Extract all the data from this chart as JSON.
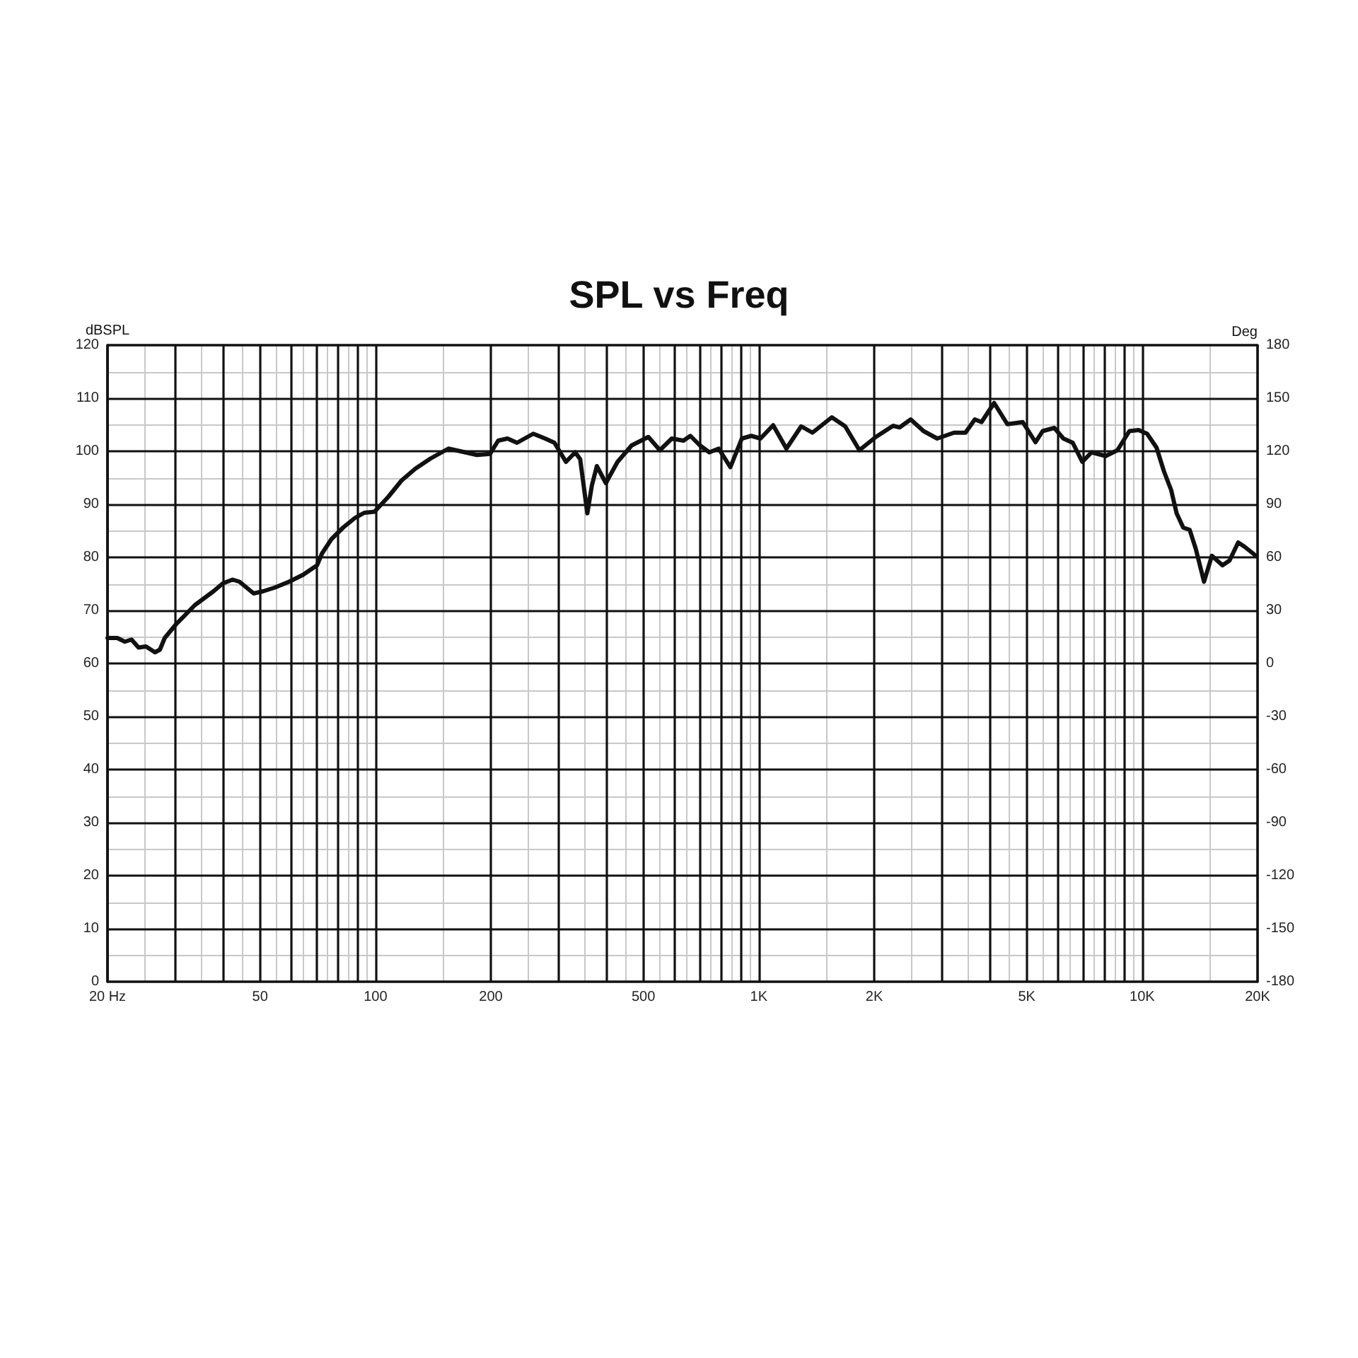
{
  "chart_data": {
    "type": "line",
    "title": "SPL vs Freq",
    "ylabel": "dBSPL",
    "y2label": "Deg",
    "x": [
      20,
      21.2,
      22.2,
      23.1,
      24.1,
      25.2,
      26.6,
      27.4,
      28.2,
      30.2,
      33.8,
      37.8,
      40,
      42.4,
      44.2,
      48.1,
      50.9,
      54.6,
      59.5,
      64.7,
      70.4,
      72.5,
      76.7,
      82.3,
      88.3,
      93.5,
      99.4,
      108,
      117,
      127,
      139,
      155,
      169,
      184,
      199,
      209,
      221,
      234,
      258,
      277,
      293,
      314,
      332,
      342,
      357,
      367,
      378,
      399,
      428,
      466,
      515,
      552,
      593,
      636,
      663,
      702,
      743,
      786,
      843,
      903,
      956,
      1010,
      1090,
      1180,
      1290,
      1380,
      1550,
      1680,
      1830,
      2020,
      2240,
      2330,
      2490,
      2690,
      2920,
      3230,
      3460,
      3660,
      3810,
      4110,
      4450,
      4880,
      5270,
      5500,
      5900,
      6230,
      6590,
      6980,
      7380,
      8030,
      8620,
      9260,
      9790,
      10300,
      10900,
      11400,
      11900,
      12300,
      12800,
      13300,
      13800,
      14500,
      15200,
      16200,
      16900,
      17800,
      18500,
      19800
    ],
    "values": [
      64.8,
      64.8,
      64.1,
      64.5,
      63,
      63.2,
      62.1,
      62.6,
      64.8,
      67.4,
      71,
      73.6,
      75.1,
      75.8,
      75.4,
      73.2,
      73.6,
      74.3,
      75.4,
      76.7,
      78.5,
      80.7,
      83.4,
      85.6,
      87.4,
      88.4,
      88.6,
      91.4,
      94.5,
      96.7,
      98.6,
      100.5,
      99.9,
      99.3,
      99.5,
      102,
      102.4,
      101.6,
      103.3,
      102.4,
      101.6,
      98,
      99.8,
      98.5,
      88.3,
      93.6,
      97.2,
      94,
      98,
      101.1,
      102.7,
      100.2,
      102.4,
      102,
      102.9,
      101.1,
      99.8,
      100.5,
      97,
      102.4,
      102.9,
      102.4,
      104.9,
      100.5,
      104.7,
      103.5,
      106.4,
      104.7,
      100.2,
      102.7,
      104.8,
      104.5,
      106,
      103.8,
      102.4,
      103.5,
      103.5,
      106,
      105.5,
      109.1,
      105.1,
      105.5,
      101.7,
      103.8,
      104.4,
      102.4,
      101.6,
      98,
      99.8,
      99.1,
      100.2,
      103.8,
      104,
      103.3,
      100.7,
      96.2,
      92.7,
      88.3,
      85.6,
      85.2,
      81.6,
      75.4,
      80.3,
      78.5,
      79.4,
      82.8,
      82,
      80.3
    ],
    "color": "#111111",
    "marker": "none",
    "log": "x",
    "grid": true,
    "xlim": [
      20,
      20000
    ],
    "xticks": [
      {
        "value": 20,
        "label": "20 Hz"
      },
      {
        "value": 30,
        "label": null
      },
      {
        "value": 40,
        "label": null
      },
      50,
      {
        "value": 60,
        "label": null
      },
      {
        "value": 70,
        "label": null
      },
      {
        "value": 80,
        "label": null
      },
      {
        "value": 90,
        "label": null
      },
      100,
      200,
      {
        "value": 300,
        "label": null
      },
      {
        "value": 400,
        "label": null
      },
      500,
      {
        "value": 600,
        "label": null
      },
      {
        "value": 700,
        "label": null
      },
      {
        "value": 800,
        "label": null
      },
      {
        "value": 900,
        "label": null
      },
      {
        "value": 1000,
        "label": "1K"
      },
      {
        "value": 2000,
        "label": "2K"
      },
      {
        "value": 3000,
        "label": null
      },
      {
        "value": 4000,
        "label": null
      },
      {
        "value": 5000,
        "label": "5K"
      },
      {
        "value": 6000,
        "label": null
      },
      {
        "value": 7000,
        "label": null
      },
      {
        "value": 8000,
        "label": null
      },
      {
        "value": 9000,
        "label": null
      },
      {
        "value": 10000,
        "label": "10K"
      },
      {
        "value": 20000,
        "label": "20K"
      }
    ],
    "ylim": [
      0,
      120
    ],
    "yticks": [
      0,
      10,
      20,
      30,
      40,
      50,
      60,
      70,
      80,
      90,
      100,
      110,
      120
    ],
    "y2lim": [
      -180,
      180
    ],
    "y2ticks": [
      -180,
      -150,
      -120,
      -90,
      -60,
      -30,
      0,
      30,
      60,
      90,
      120,
      150,
      180
    ]
  }
}
